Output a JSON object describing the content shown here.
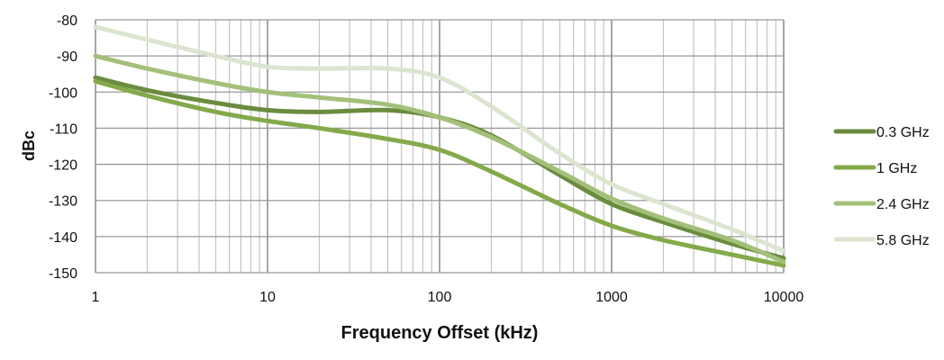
{
  "chart_data": {
    "type": "line",
    "title": "",
    "xlabel": "Frequency Offset (kHz)",
    "ylabel": "dBc",
    "xscale": "log",
    "xlim": [
      1,
      10000
    ],
    "ylim": [
      -150,
      -80
    ],
    "xticks": [
      "1",
      "10",
      "100",
      "1000",
      "10000"
    ],
    "yticks": [
      "-80",
      "-90",
      "-100",
      "-110",
      "-120",
      "-130",
      "-140",
      "-150"
    ],
    "grid": true,
    "legend_position": "right",
    "x": [
      1,
      2,
      5,
      10,
      20,
      50,
      100,
      200,
      500,
      1000,
      2000,
      5000,
      10000
    ],
    "series": [
      {
        "name": "0.3 GHz",
        "color": "#6b8c3e",
        "values": [
          -96,
          -99.5,
          -103,
          -105,
          -105.5,
          -105,
          -107,
          -112,
          -123,
          -131,
          -136,
          -142,
          -146
        ]
      },
      {
        "name": "1 GHz",
        "color": "#84a94a",
        "values": [
          -97,
          -101,
          -105.5,
          -108,
          -110,
          -113,
          -116,
          -122,
          -131,
          -137,
          -141,
          -145,
          -148
        ]
      },
      {
        "name": "2.4 GHz",
        "color": "#a3c07a",
        "values": [
          -90,
          -93.5,
          -97.5,
          -100,
          -101.5,
          -103.5,
          -107,
          -112.5,
          -122,
          -129.5,
          -135,
          -141,
          -147
        ]
      },
      {
        "name": "5.8 GHz",
        "color": "#dbe5cf",
        "values": [
          -82,
          -85.5,
          -90,
          -93,
          -93.5,
          -93.5,
          -96,
          -104,
          -117,
          -125.5,
          -131,
          -138,
          -144
        ]
      }
    ]
  }
}
